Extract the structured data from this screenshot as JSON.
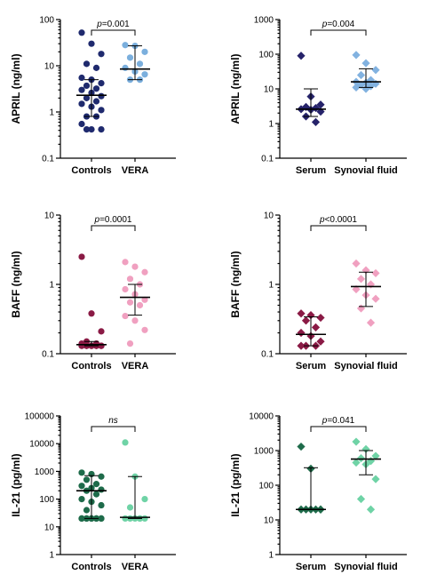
{
  "chart_data": [
    {
      "type": "scatter",
      "ylabel": "APRIL (ng/ml)",
      "yscale": "log",
      "ylim": [
        0.1,
        100
      ],
      "yticks": [
        "0.1",
        "1",
        "10",
        "100"
      ],
      "categories": [
        "Controls",
        "VERA"
      ],
      "annotation": {
        "label": "p=",
        "value": "0.001"
      },
      "colors": [
        "#1f2a6e",
        "#7bafdd"
      ],
      "marker": "circle",
      "series": [
        {
          "values": [
            52,
            30,
            18,
            11,
            9,
            5.5,
            5,
            4.2,
            3.7,
            3.2,
            3.0,
            2.6,
            2.2,
            2.0,
            1.7,
            1.5,
            1.3,
            1.1,
            0.8,
            0.8,
            0.55,
            0.42,
            0.42,
            0.42
          ],
          "median": 2.3,
          "lower": 0.8,
          "upper": 5.0
        },
        {
          "values": [
            28,
            27,
            20,
            15,
            11,
            9,
            7.5,
            6.5,
            5,
            5
          ],
          "median": 8.5,
          "lower": 5,
          "upper": 27
        }
      ]
    },
    {
      "type": "scatter",
      "ylabel": "APRIL (ng/ml)",
      "yscale": "log",
      "ylim": [
        0.1,
        1000
      ],
      "yticks": [
        "0.1",
        "1",
        "10",
        "100",
        "1000"
      ],
      "categories": [
        "Serum",
        "Synovial fluid"
      ],
      "annotation": {
        "label": "p=",
        "value": "0.004"
      },
      "colors": [
        "#26236a",
        "#82b2e0"
      ],
      "marker": "diamond",
      "series": [
        {
          "values": [
            90,
            6,
            3.5,
            3.0,
            2.8,
            2.6,
            2.5,
            2.2,
            1.6,
            1.1
          ],
          "median": 2.6,
          "lower": 1.6,
          "upper": 10
        },
        {
          "values": [
            95,
            55,
            35,
            25,
            18,
            16,
            15,
            14,
            13,
            12,
            11,
            10
          ],
          "median": 16,
          "lower": 11,
          "upper": 38
        }
      ]
    },
    {
      "type": "scatter",
      "ylabel": "BAFF (ng/ml)",
      "yscale": "log",
      "ylim": [
        0.1,
        10
      ],
      "yticks": [
        "0.1",
        "1",
        "10"
      ],
      "categories": [
        "Controls",
        "VERA"
      ],
      "annotation": {
        "label": "p=",
        "value": "0.0001"
      },
      "colors": [
        "#8a1a45",
        "#f0a0c0"
      ],
      "marker": "circle",
      "series": [
        {
          "values": [
            2.5,
            0.38,
            0.21,
            0.15,
            0.14,
            0.14,
            0.13,
            0.13,
            0.13,
            0.13,
            0.13,
            0.13,
            0.13,
            0.13,
            0.13,
            0.13,
            0.13,
            0.13,
            0.13,
            0.13
          ],
          "median": 0.135,
          "lower": 0.13,
          "upper": 0.15
        },
        {
          "values": [
            2.1,
            1.8,
            1.5,
            1.2,
            1.0,
            0.85,
            0.72,
            0.6,
            0.55,
            0.5,
            0.35,
            0.3,
            0.22,
            0.14
          ],
          "median": 0.65,
          "lower": 0.36,
          "upper": 1.0
        }
      ]
    },
    {
      "type": "scatter",
      "ylabel": "BAFF (ng/ml)",
      "yscale": "log",
      "ylim": [
        0.1,
        10
      ],
      "yticks": [
        "0.1",
        "1",
        "10"
      ],
      "categories": [
        "Serum",
        "Synovial fluid"
      ],
      "annotation": {
        "label": "p<",
        "value": "0.0001"
      },
      "colors": [
        "#8a1a45",
        "#f0a0c0"
      ],
      "marker": "diamond",
      "series": [
        {
          "values": [
            0.38,
            0.36,
            0.33,
            0.3,
            0.24,
            0.2,
            0.18,
            0.15,
            0.13,
            0.13,
            0.13
          ],
          "median": 0.19,
          "lower": 0.13,
          "upper": 0.34
        },
        {
          "values": [
            2.0,
            1.6,
            1.45,
            1.2,
            1.0,
            0.85,
            0.7,
            0.62,
            0.45,
            0.28
          ],
          "median": 0.93,
          "lower": 0.48,
          "upper": 1.5
        }
      ]
    },
    {
      "type": "scatter",
      "ylabel": "IL-21 (pg/ml)",
      "yscale": "log",
      "ylim": [
        1,
        100000
      ],
      "yticks": [
        "1",
        "10",
        "100",
        "1000",
        "10000",
        "100000"
      ],
      "categories": [
        "Controls",
        "VERA"
      ],
      "annotation": {
        "label": "",
        "value": "ns"
      },
      "colors": [
        "#1e6b4a",
        "#6fd3a6"
      ],
      "marker": "circle",
      "series": [
        {
          "values": [
            900,
            800,
            650,
            500,
            350,
            300,
            250,
            220,
            200,
            150,
            100,
            80,
            60,
            40,
            20,
            20,
            20,
            20,
            20,
            20,
            20,
            20,
            20,
            20
          ],
          "median": 200,
          "lower": 20,
          "upper": 700
        },
        {
          "values": [
            11000,
            650,
            100,
            50,
            20,
            20,
            20,
            20,
            20,
            20
          ],
          "median": 22,
          "lower": 20,
          "upper": 650
        }
      ]
    },
    {
      "type": "scatter",
      "ylabel": "IL-21 (pg/ml)",
      "yscale": "log",
      "ylim": [
        1,
        10000
      ],
      "yticks": [
        "1",
        "10",
        "100",
        "1000",
        "10000"
      ],
      "categories": [
        "Serum",
        "Synovial fluid"
      ],
      "annotation": {
        "label": "p=",
        "value": "0.041"
      },
      "colors": [
        "#1e6b4a",
        "#6fd3a6"
      ],
      "marker": "diamond",
      "series": [
        {
          "values": [
            1300,
            300,
            20,
            20,
            20,
            20,
            20,
            20
          ],
          "median": 20,
          "lower": 20,
          "upper": 320
        },
        {
          "values": [
            1800,
            1100,
            700,
            600,
            500,
            450,
            400,
            150,
            40,
            20
          ],
          "median": 570,
          "lower": 200,
          "upper": 1000
        }
      ]
    }
  ]
}
